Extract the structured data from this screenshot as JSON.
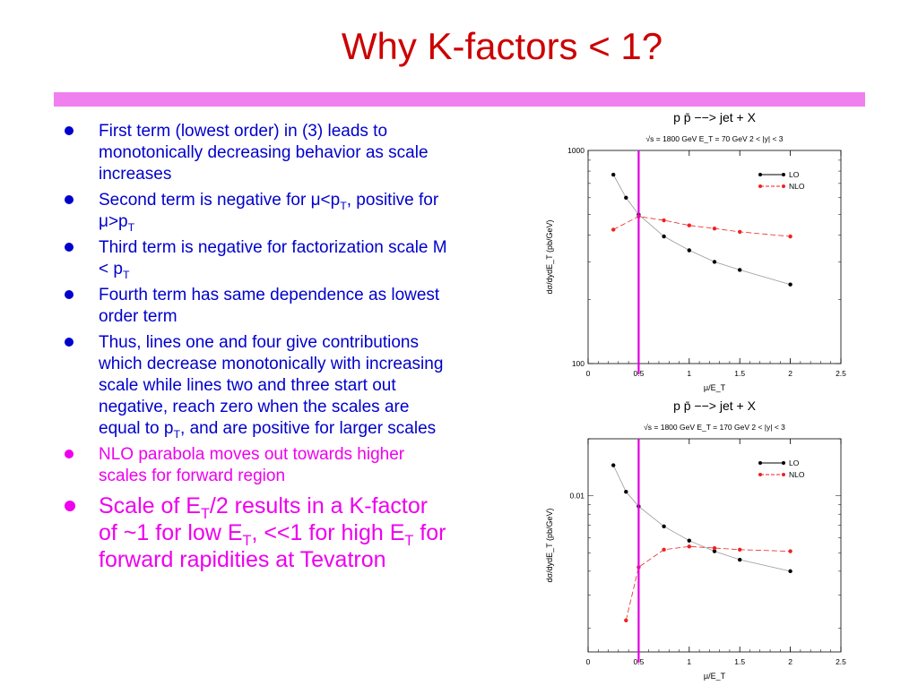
{
  "slide": {
    "title": "Why K-factors < 1?",
    "bullets": [
      {
        "parts": [
          {
            "t": "First term (lowest order) in (3) leads to monotonically decreasing behavior as scale increases"
          }
        ]
      },
      {
        "parts": [
          {
            "t": "Second term is negative for "
          },
          {
            "t": "μ"
          },
          {
            "t": "<p"
          },
          {
            "t": "T",
            "sub": true
          },
          {
            "t": ", positive for "
          },
          {
            "t": "μ"
          },
          {
            "t": ">p"
          },
          {
            "t": "T",
            "sub": true
          }
        ]
      },
      {
        "parts": [
          {
            "t": "Third term is negative for factorization scale M < p"
          },
          {
            "t": "T",
            "sub": true
          }
        ]
      },
      {
        "parts": [
          {
            "t": "Fourth term has same dependence as lowest order term"
          }
        ]
      },
      {
        "parts": [
          {
            "t": "Thus, lines one and four give contributions which decrease monotonically with increasing scale while lines two and three start out negative, reach zero when the scales are equal to p"
          },
          {
            "t": "T",
            "sub": true
          },
          {
            "t": ", and are positive for larger scales"
          }
        ]
      },
      {
        "style": "pink",
        "parts": [
          {
            "t": "NLO parabola moves out towards higher scales for forward region"
          }
        ]
      },
      {
        "style": "pink big",
        "parts": [
          {
            "t": "Scale of E"
          },
          {
            "t": "T",
            "sub": true
          },
          {
            "t": "/2 results in a K-factor of ~1 for low E"
          },
          {
            "t": "T",
            "sub": true
          },
          {
            "t": ", <<1 for high E"
          },
          {
            "t": "T",
            "sub": true
          },
          {
            "t": " for forward rapidities at Tevatron"
          }
        ]
      }
    ]
  },
  "colors": {
    "title": "#cc0000",
    "divider": "#f080f0",
    "bullet_text": "#0000cc",
    "highlight_text": "#ee00ee",
    "marker_line": "#e000e0",
    "lo": "#000000",
    "nlo": "#ee2222"
  },
  "chart_data": [
    {
      "type": "line",
      "title": "p p̄ −−> jet + X",
      "subtitle": "√s = 1800 GeV   E_T = 70 GeV   2 < |y| < 3",
      "xlabel": "μ/E_T",
      "ylabel": "dσ/dydE_T (pb/GeV)",
      "xlim": [
        0,
        2.5
      ],
      "xticks": [
        "0",
        "0.5",
        "1",
        "1.5",
        "2",
        "2.5"
      ],
      "ylim": [
        100,
        1000
      ],
      "ylog": true,
      "yticks": [
        {
          "v": 1000,
          "label": "1000"
        },
        {
          "v": 100,
          "label": "100"
        }
      ],
      "legend": "top-right",
      "vline": 0.5,
      "series": [
        {
          "name": "LO",
          "color": "#000000",
          "dashed": false,
          "x": [
            0.25,
            0.375,
            0.5,
            0.75,
            1.0,
            1.25,
            1.5,
            2.0
          ],
          "y": [
            770,
            600,
            500,
            395,
            340,
            300,
            275,
            235
          ]
        },
        {
          "name": "NLO",
          "color": "#ee2222",
          "dashed": true,
          "x": [
            0.25,
            0.5,
            0.75,
            1.0,
            1.25,
            1.5,
            2.0
          ],
          "y": [
            425,
            490,
            470,
            445,
            430,
            415,
            395
          ]
        }
      ]
    },
    {
      "type": "line",
      "title": "p p̄ −−> jet + X",
      "subtitle": "√s = 1800 GeV   E_T = 170 GeV   2 < |y| < 3",
      "xlabel": "μ/E_T",
      "ylabel": "dσ/dydE_T (pb/GeV)",
      "xlim": [
        0,
        2.5
      ],
      "xticks": [
        "0",
        "0.5",
        "1",
        "1.5",
        "2",
        "2.5"
      ],
      "ylim": [
        0.0015,
        0.02
      ],
      "ylog": true,
      "yticks": [
        {
          "v": 0.01,
          "label": "0.01"
        }
      ],
      "legend": "top-right",
      "vline": 0.5,
      "series": [
        {
          "name": "LO",
          "color": "#000000",
          "dashed": false,
          "x": [
            0.25,
            0.375,
            0.5,
            0.75,
            1.0,
            1.25,
            1.5,
            2.0
          ],
          "y": [
            0.0145,
            0.0105,
            0.0088,
            0.0069,
            0.0058,
            0.0051,
            0.0046,
            0.004
          ]
        },
        {
          "name": "NLO",
          "color": "#ee2222",
          "dashed": true,
          "x": [
            0.375,
            0.5,
            0.75,
            1.0,
            1.25,
            1.5,
            2.0
          ],
          "y": [
            0.0022,
            0.0042,
            0.0052,
            0.0054,
            0.0053,
            0.0052,
            0.0051
          ]
        }
      ]
    }
  ]
}
